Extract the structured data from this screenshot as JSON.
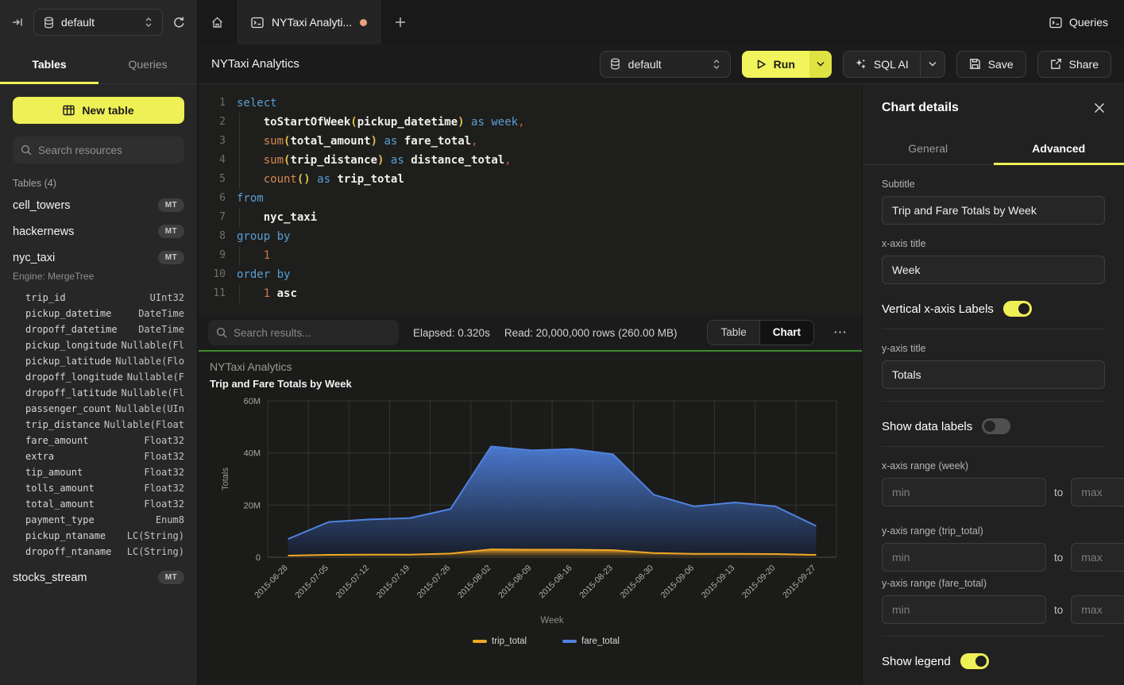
{
  "topbar": {
    "db_selector": "default",
    "tab_title": "NYTaxi Analyti...",
    "queries_label": "Queries"
  },
  "sidebar": {
    "tabs": {
      "tables": "Tables",
      "queries": "Queries"
    },
    "new_table_label": "New table",
    "search_placeholder": "Search resources",
    "section_label": "Tables (4)",
    "tables": [
      {
        "name": "cell_towers",
        "badge": "MT"
      },
      {
        "name": "hackernews",
        "badge": "MT"
      },
      {
        "name": "nyc_taxi",
        "badge": "MT",
        "engine": "Engine: MergeTree",
        "columns": [
          [
            "trip_id",
            "UInt32"
          ],
          [
            "pickup_datetime",
            "DateTime"
          ],
          [
            "dropoff_datetime",
            "DateTime"
          ],
          [
            "pickup_longitude",
            "Nullable(Fl"
          ],
          [
            "pickup_latitude",
            "Nullable(Flo"
          ],
          [
            "dropoff_longitude",
            "Nullable(F"
          ],
          [
            "dropoff_latitude",
            "Nullable(Fl"
          ],
          [
            "passenger_count",
            "Nullable(UIn"
          ],
          [
            "trip_distance",
            "Nullable(Float"
          ],
          [
            "fare_amount",
            "Float32"
          ],
          [
            "extra",
            "Float32"
          ],
          [
            "tip_amount",
            "Float32"
          ],
          [
            "tolls_amount",
            "Float32"
          ],
          [
            "total_amount",
            "Float32"
          ],
          [
            "payment_type",
            "Enum8"
          ],
          [
            "pickup_ntaname",
            "LC(String)"
          ],
          [
            "dropoff_ntaname",
            "LC(String)"
          ]
        ]
      },
      {
        "name": "stocks_stream",
        "badge": "MT"
      }
    ]
  },
  "query_header": {
    "title": "NYTaxi Analytics",
    "db_selector": "default",
    "run_label": "Run",
    "sql_ai_label": "SQL AI",
    "save_label": "Save",
    "share_label": "Share"
  },
  "editor": {
    "lines": [
      [
        [
          "kw",
          "select"
        ]
      ],
      [
        [
          "ws",
          "    "
        ],
        [
          "id",
          "toStartOfWeek"
        ],
        [
          "pr",
          "("
        ],
        [
          "id",
          "pickup_datetime"
        ],
        [
          "pr",
          ")"
        ],
        [
          "ws",
          " "
        ],
        [
          "kw",
          "as"
        ],
        [
          "ws",
          " "
        ],
        [
          "kw",
          "week"
        ],
        [
          "pu",
          ","
        ]
      ],
      [
        [
          "ws",
          "    "
        ],
        [
          "fn",
          "sum"
        ],
        [
          "pr",
          "("
        ],
        [
          "id",
          "total_amount"
        ],
        [
          "pr",
          ")"
        ],
        [
          "ws",
          " "
        ],
        [
          "kw",
          "as"
        ],
        [
          "ws",
          " "
        ],
        [
          "id",
          "fare_total"
        ],
        [
          "pu",
          ","
        ]
      ],
      [
        [
          "ws",
          "    "
        ],
        [
          "fn",
          "sum"
        ],
        [
          "pr",
          "("
        ],
        [
          "id",
          "trip_distance"
        ],
        [
          "pr",
          ")"
        ],
        [
          "ws",
          " "
        ],
        [
          "kw",
          "as"
        ],
        [
          "ws",
          " "
        ],
        [
          "id",
          "distance_total"
        ],
        [
          "pu",
          ","
        ]
      ],
      [
        [
          "ws",
          "    "
        ],
        [
          "fn",
          "count"
        ],
        [
          "pr",
          "()"
        ],
        [
          "ws",
          " "
        ],
        [
          "kw",
          "as"
        ],
        [
          "ws",
          " "
        ],
        [
          "id",
          "trip_total"
        ]
      ],
      [
        [
          "kw",
          "from"
        ]
      ],
      [
        [
          "ws",
          "    "
        ],
        [
          "id",
          "nyc_taxi"
        ]
      ],
      [
        [
          "kw",
          "group by"
        ]
      ],
      [
        [
          "ws",
          "    "
        ],
        [
          "nu",
          "1"
        ]
      ],
      [
        [
          "kw",
          "order by"
        ]
      ],
      [
        [
          "ws",
          "    "
        ],
        [
          "nu",
          "1"
        ],
        [
          "ws",
          " "
        ],
        [
          "id",
          "asc"
        ]
      ]
    ]
  },
  "results_bar": {
    "search_placeholder": "Search results...",
    "elapsed": "Elapsed: 0.320s",
    "read": "Read: 20,000,000 rows (260.00 MB)",
    "view_table": "Table",
    "view_chart": "Chart",
    "active_view": "Chart",
    "more": "⋯"
  },
  "chart_data": {
    "type": "area",
    "title": "NYTaxi Analytics",
    "subtitle": "Trip and Fare Totals by Week",
    "xlabel": "Week",
    "ylabel": "Totals",
    "categories": [
      "2015-06-28",
      "2015-07-05",
      "2015-07-12",
      "2015-07-19",
      "2015-07-26",
      "2015-08-02",
      "2015-08-09",
      "2015-08-16",
      "2015-08-23",
      "2015-08-30",
      "2015-09-06",
      "2015-09-13",
      "2015-09-20",
      "2015-09-27"
    ],
    "series": [
      {
        "name": "trip_total",
        "color": "#f0a827",
        "values": [
          600000,
          900000,
          1000000,
          1000000,
          1400000,
          3000000,
          2900000,
          2900000,
          2700000,
          1600000,
          1300000,
          1300000,
          1200000,
          900000
        ]
      },
      {
        "name": "fare_total",
        "color": "#4f82e0",
        "values": [
          7000000,
          13500000,
          14500000,
          15000000,
          18500000,
          42500000,
          41000000,
          41500000,
          39500000,
          24000000,
          19500000,
          21000000,
          19500000,
          12000000
        ]
      }
    ],
    "ylim": [
      0,
      60000000
    ],
    "yticks": [
      [
        0,
        "0"
      ],
      [
        20000000,
        "20M"
      ],
      [
        40000000,
        "40M"
      ],
      [
        60000000,
        "60M"
      ]
    ],
    "legend_position": "bottom",
    "grid": true
  },
  "details_panel": {
    "title": "Chart details",
    "tabs": {
      "general": "General",
      "advanced": "Advanced"
    },
    "active_tab": "Advanced",
    "subtitle_label": "Subtitle",
    "subtitle_value": "Trip and Fare Totals by Week",
    "x_axis_title_label": "x-axis title",
    "x_axis_title_value": "Week",
    "vertical_x_labels_label": "Vertical x-axis Labels",
    "vertical_x_labels_on": true,
    "y_axis_title_label": "y-axis title",
    "y_axis_title_value": "Totals",
    "show_data_labels_label": "Show data labels",
    "show_data_labels_on": false,
    "x_range_label": "x-axis range (week)",
    "y_range_trip_label": "y-axis range (trip_total)",
    "y_range_fare_label": "y-axis range (fare_total)",
    "min_placeholder": "min",
    "max_placeholder": "max",
    "to_label": "to",
    "show_legend_label": "Show legend",
    "show_legend_on": true
  },
  "colors": {
    "accent": "#eef056",
    "success_divider": "#3f8b2f",
    "tab_dot": "#efa07c",
    "series_trip": "#f0a827",
    "series_fare": "#4f82e0"
  }
}
